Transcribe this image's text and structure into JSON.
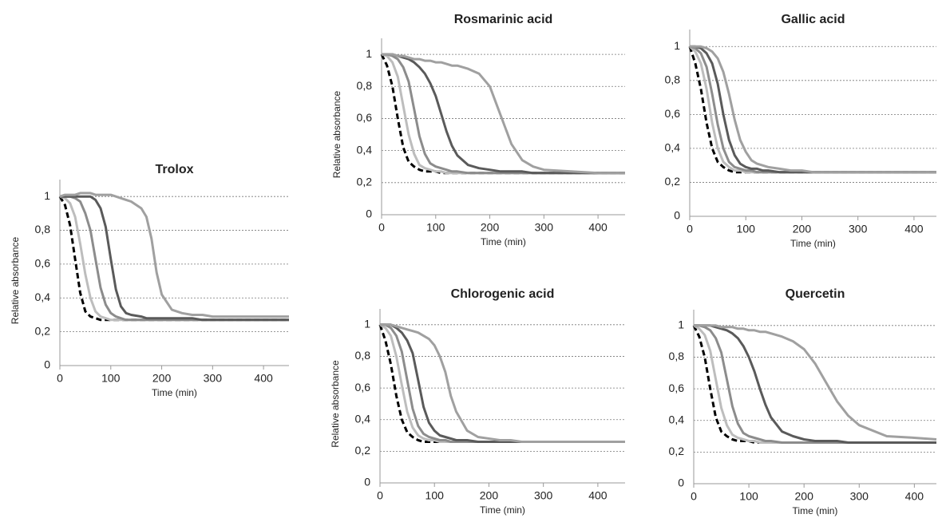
{
  "chart_data": [
    {
      "type": "line",
      "title": "Trolox",
      "xlabel": "Time (min)",
      "ylabel": "Relative absorbance",
      "x": [
        0,
        10,
        20,
        30,
        40,
        50,
        60,
        70,
        80,
        90,
        100,
        110,
        120,
        130,
        140,
        160,
        170,
        180,
        190,
        200,
        220,
        240,
        260,
        280,
        300,
        350,
        400,
        450
      ],
      "xlim": [
        0,
        450
      ],
      "xticks": [
        0,
        100,
        200,
        300,
        400
      ],
      "ylim": [
        0,
        1.1
      ],
      "yticks": [
        0,
        {
          "value": 0.2,
          "label": "0,2"
        },
        {
          "value": 0.4,
          "label": "0,4"
        },
        {
          "value": 0.6,
          "label": "0,6"
        },
        {
          "value": 0.8,
          "label": "0,8"
        },
        1
      ],
      "grid": true,
      "series": [
        {
          "color": "#000000",
          "dash": true,
          "values": [
            1,
            0.95,
            0.83,
            0.63,
            0.43,
            0.32,
            0.29,
            0.28,
            0.27,
            0.27,
            0.27,
            0.27,
            0.27,
            0.27,
            0.27,
            0.27,
            0.27,
            0.27,
            0.27,
            0.27,
            0.27,
            0.27,
            0.27,
            0.27,
            0.27,
            0.27,
            0.27,
            0.27
          ]
        },
        {
          "color": "#bdbdbd",
          "values": [
            1,
            0.99,
            0.96,
            0.88,
            0.72,
            0.54,
            0.4,
            0.32,
            0.29,
            0.28,
            0.27,
            0.27,
            0.27,
            0.27,
            0.27,
            0.27,
            0.27,
            0.27,
            0.27,
            0.27,
            0.27,
            0.27,
            0.27,
            0.27,
            0.27,
            0.27,
            0.27,
            0.27
          ]
        },
        {
          "color": "#8c8c8c",
          "values": [
            1,
            1,
            1,
            0.99,
            0.97,
            0.9,
            0.8,
            0.63,
            0.46,
            0.36,
            0.31,
            0.29,
            0.28,
            0.27,
            0.27,
            0.27,
            0.27,
            0.27,
            0.27,
            0.27,
            0.27,
            0.27,
            0.27,
            0.27,
            0.27,
            0.27,
            0.27,
            0.27
          ]
        },
        {
          "color": "#5a5a5a",
          "values": [
            1,
            1,
            1,
            1,
            1,
            1,
            1,
            0.98,
            0.93,
            0.82,
            0.63,
            0.45,
            0.35,
            0.31,
            0.3,
            0.29,
            0.28,
            0.28,
            0.28,
            0.28,
            0.28,
            0.28,
            0.28,
            0.27,
            0.27,
            0.27,
            0.27,
            0.27
          ]
        },
        {
          "color": "#a0a0a0",
          "values": [
            1,
            1.01,
            1.01,
            1.01,
            1.02,
            1.02,
            1.02,
            1.01,
            1.01,
            1.01,
            1.01,
            1,
            0.99,
            0.98,
            0.97,
            0.93,
            0.88,
            0.75,
            0.55,
            0.42,
            0.33,
            0.31,
            0.3,
            0.3,
            0.29,
            0.29,
            0.29,
            0.29
          ]
        }
      ]
    },
    {
      "type": "line",
      "title": "Rosmarinic acid",
      "xlabel": "Time (min)",
      "ylabel": "Relative absorbance",
      "x": [
        0,
        10,
        20,
        30,
        40,
        50,
        60,
        70,
        80,
        90,
        100,
        110,
        120,
        130,
        140,
        160,
        180,
        200,
        220,
        240,
        260,
        280,
        300,
        350,
        400,
        450
      ],
      "xlim": [
        0,
        450
      ],
      "xticks": [
        0,
        100,
        200,
        300,
        400
      ],
      "ylim": [
        0,
        1.1
      ],
      "yticks": [
        0,
        {
          "value": 0.2,
          "label": "0,2"
        },
        {
          "value": 0.4,
          "label": "0,4"
        },
        {
          "value": 0.6,
          "label": "0,6"
        },
        {
          "value": 0.8,
          "label": "0,8"
        },
        1
      ],
      "grid": true,
      "series": [
        {
          "color": "#000000",
          "dash": true,
          "values": [
            1,
            0.93,
            0.8,
            0.6,
            0.42,
            0.33,
            0.3,
            0.28,
            0.27,
            0.27,
            0.27,
            0.26,
            0.26,
            0.26,
            0.26,
            0.26,
            0.26,
            0.26,
            0.26,
            0.26,
            0.26,
            0.26,
            0.26,
            0.26,
            0.26,
            0.26
          ]
        },
        {
          "color": "#bdbdbd",
          "values": [
            1,
            0.99,
            0.95,
            0.86,
            0.68,
            0.5,
            0.38,
            0.31,
            0.29,
            0.28,
            0.27,
            0.27,
            0.26,
            0.26,
            0.26,
            0.26,
            0.26,
            0.26,
            0.26,
            0.26,
            0.26,
            0.26,
            0.26,
            0.26,
            0.26,
            0.26
          ]
        },
        {
          "color": "#8c8c8c",
          "values": [
            1,
            1,
            0.99,
            0.97,
            0.92,
            0.83,
            0.66,
            0.49,
            0.38,
            0.32,
            0.3,
            0.29,
            0.28,
            0.27,
            0.27,
            0.26,
            0.26,
            0.26,
            0.26,
            0.26,
            0.26,
            0.26,
            0.26,
            0.26,
            0.26,
            0.26
          ]
        },
        {
          "color": "#5a5a5a",
          "values": [
            1,
            1,
            1,
            0.99,
            0.98,
            0.97,
            0.95,
            0.92,
            0.88,
            0.82,
            0.74,
            0.63,
            0.52,
            0.43,
            0.37,
            0.31,
            0.29,
            0.28,
            0.27,
            0.27,
            0.27,
            0.26,
            0.26,
            0.26,
            0.26,
            0.26
          ]
        },
        {
          "color": "#a0a0a0",
          "values": [
            1,
            1,
            1,
            0.99,
            0.99,
            0.98,
            0.97,
            0.97,
            0.96,
            0.96,
            0.95,
            0.95,
            0.94,
            0.93,
            0.93,
            0.91,
            0.88,
            0.8,
            0.62,
            0.44,
            0.34,
            0.3,
            0.28,
            0.27,
            0.26,
            0.26
          ]
        }
      ]
    },
    {
      "type": "line",
      "title": "Gallic acid",
      "xlabel": "Time (min)",
      "x": [
        0,
        10,
        20,
        30,
        40,
        50,
        60,
        70,
        80,
        90,
        100,
        110,
        120,
        130,
        140,
        160,
        180,
        200,
        220,
        240,
        260,
        280,
        300,
        350,
        400,
        440
      ],
      "xlim": [
        0,
        440
      ],
      "xticks": [
        0,
        100,
        200,
        300,
        400
      ],
      "ylim": [
        0,
        1.1
      ],
      "yticks": [
        0,
        {
          "value": 0.2,
          "label": "0,2"
        },
        {
          "value": 0.4,
          "label": "0,4"
        },
        {
          "value": 0.6,
          "label": "0,6"
        },
        {
          "value": 0.8,
          "label": "0,8"
        },
        1
      ],
      "grid": true,
      "series": [
        {
          "color": "#000000",
          "dash": true,
          "values": [
            1,
            0.9,
            0.75,
            0.55,
            0.4,
            0.32,
            0.29,
            0.27,
            0.26,
            0.26,
            0.26,
            0.26,
            0.26,
            0.26,
            0.26,
            0.26,
            0.26,
            0.26,
            0.26,
            0.26,
            0.26,
            0.26,
            0.26,
            0.26,
            0.26,
            0.26
          ]
        },
        {
          "color": "#bdbdbd",
          "values": [
            1,
            0.97,
            0.9,
            0.75,
            0.55,
            0.4,
            0.32,
            0.29,
            0.27,
            0.27,
            0.26,
            0.26,
            0.26,
            0.26,
            0.26,
            0.26,
            0.26,
            0.26,
            0.26,
            0.26,
            0.26,
            0.26,
            0.26,
            0.26,
            0.26,
            0.26
          ]
        },
        {
          "color": "#8c8c8c",
          "values": [
            1,
            0.99,
            0.96,
            0.88,
            0.72,
            0.54,
            0.4,
            0.32,
            0.29,
            0.28,
            0.27,
            0.27,
            0.26,
            0.26,
            0.26,
            0.26,
            0.26,
            0.26,
            0.26,
            0.26,
            0.26,
            0.26,
            0.26,
            0.26,
            0.26,
            0.26
          ]
        },
        {
          "color": "#5a5a5a",
          "values": [
            1,
            1,
            0.99,
            0.96,
            0.9,
            0.78,
            0.6,
            0.45,
            0.36,
            0.31,
            0.29,
            0.28,
            0.28,
            0.27,
            0.27,
            0.26,
            0.26,
            0.26,
            0.26,
            0.26,
            0.26,
            0.26,
            0.26,
            0.26,
            0.26,
            0.26
          ]
        },
        {
          "color": "#a0a0a0",
          "values": [
            1,
            1,
            1,
            0.99,
            0.97,
            0.93,
            0.85,
            0.72,
            0.57,
            0.45,
            0.38,
            0.33,
            0.31,
            0.3,
            0.29,
            0.28,
            0.27,
            0.27,
            0.26,
            0.26,
            0.26,
            0.26,
            0.26,
            0.26,
            0.26,
            0.26
          ]
        }
      ]
    },
    {
      "type": "line",
      "title": "Chlorogenic acid",
      "xlabel": "Time (min)",
      "ylabel": "Relative absorbance",
      "x": [
        0,
        10,
        20,
        30,
        40,
        50,
        60,
        70,
        80,
        90,
        100,
        110,
        120,
        130,
        140,
        160,
        180,
        200,
        220,
        240,
        260,
        280,
        300,
        350,
        400,
        450
      ],
      "xlim": [
        0,
        450
      ],
      "xticks": [
        0,
        100,
        200,
        300,
        400
      ],
      "ylim": [
        0,
        1.1
      ],
      "yticks": [
        0,
        {
          "value": 0.2,
          "label": "0,2"
        },
        {
          "value": 0.4,
          "label": "0,4"
        },
        {
          "value": 0.6,
          "label": "0,6"
        },
        {
          "value": 0.8,
          "label": "0,8"
        },
        1
      ],
      "grid": true,
      "series": [
        {
          "color": "#000000",
          "dash": true,
          "values": [
            1,
            0.9,
            0.75,
            0.55,
            0.4,
            0.32,
            0.29,
            0.27,
            0.26,
            0.26,
            0.26,
            0.26,
            0.26,
            0.26,
            0.26,
            0.26,
            0.26,
            0.26,
            0.26,
            0.26,
            0.26,
            0.26,
            0.26,
            0.26,
            0.26,
            0.26
          ]
        },
        {
          "color": "#bdbdbd",
          "values": [
            1,
            0.98,
            0.93,
            0.8,
            0.62,
            0.45,
            0.35,
            0.3,
            0.28,
            0.27,
            0.27,
            0.26,
            0.26,
            0.26,
            0.26,
            0.26,
            0.26,
            0.26,
            0.26,
            0.26,
            0.26,
            0.26,
            0.26,
            0.26,
            0.26,
            0.26
          ]
        },
        {
          "color": "#8c8c8c",
          "values": [
            1,
            1,
            0.98,
            0.93,
            0.83,
            0.65,
            0.47,
            0.36,
            0.31,
            0.29,
            0.28,
            0.27,
            0.27,
            0.26,
            0.26,
            0.26,
            0.26,
            0.26,
            0.26,
            0.26,
            0.26,
            0.26,
            0.26,
            0.26,
            0.26,
            0.26
          ]
        },
        {
          "color": "#5a5a5a",
          "values": [
            1,
            1,
            1,
            0.98,
            0.95,
            0.9,
            0.82,
            0.65,
            0.48,
            0.38,
            0.33,
            0.3,
            0.29,
            0.28,
            0.27,
            0.27,
            0.26,
            0.26,
            0.26,
            0.26,
            0.26,
            0.26,
            0.26,
            0.26,
            0.26,
            0.26
          ]
        },
        {
          "color": "#a0a0a0",
          "values": [
            1,
            1,
            1,
            0.99,
            0.98,
            0.97,
            0.96,
            0.95,
            0.93,
            0.91,
            0.87,
            0.8,
            0.7,
            0.55,
            0.45,
            0.33,
            0.29,
            0.28,
            0.27,
            0.27,
            0.26,
            0.26,
            0.26,
            0.26,
            0.26,
            0.26
          ]
        }
      ]
    },
    {
      "type": "line",
      "title": "Quercetin",
      "xlabel": "Time (min)",
      "x": [
        0,
        10,
        20,
        30,
        40,
        50,
        60,
        70,
        80,
        90,
        100,
        110,
        120,
        130,
        140,
        160,
        180,
        200,
        220,
        240,
        260,
        280,
        300,
        350,
        400,
        440
      ],
      "xlim": [
        0,
        440
      ],
      "xticks": [
        0,
        100,
        200,
        300,
        400
      ],
      "ylim": [
        0,
        1.1
      ],
      "yticks": [
        0,
        {
          "value": 0.2,
          "label": "0,2"
        },
        {
          "value": 0.4,
          "label": "0,4"
        },
        {
          "value": 0.6,
          "label": "0,6"
        },
        {
          "value": 0.8,
          "label": "0,8"
        },
        1
      ],
      "grid": true,
      "series": [
        {
          "color": "#000000",
          "dash": true,
          "values": [
            1,
            0.93,
            0.8,
            0.6,
            0.42,
            0.33,
            0.3,
            0.28,
            0.27,
            0.27,
            0.27,
            0.26,
            0.26,
            0.26,
            0.26,
            0.26,
            0.26,
            0.26,
            0.26,
            0.26,
            0.26,
            0.26,
            0.26,
            0.26,
            0.26,
            0.26
          ]
        },
        {
          "color": "#bdbdbd",
          "values": [
            1,
            0.98,
            0.94,
            0.84,
            0.66,
            0.48,
            0.37,
            0.31,
            0.29,
            0.28,
            0.27,
            0.27,
            0.26,
            0.26,
            0.26,
            0.26,
            0.26,
            0.26,
            0.26,
            0.26,
            0.26,
            0.26,
            0.26,
            0.26,
            0.26,
            0.26
          ]
        },
        {
          "color": "#8c8c8c",
          "values": [
            1,
            1,
            0.99,
            0.97,
            0.92,
            0.83,
            0.66,
            0.49,
            0.38,
            0.32,
            0.3,
            0.29,
            0.28,
            0.27,
            0.27,
            0.26,
            0.26,
            0.26,
            0.26,
            0.26,
            0.26,
            0.26,
            0.26,
            0.26,
            0.26,
            0.26
          ]
        },
        {
          "color": "#5a5a5a",
          "values": [
            1,
            1,
            1,
            1,
            0.99,
            0.98,
            0.97,
            0.95,
            0.92,
            0.87,
            0.8,
            0.71,
            0.6,
            0.5,
            0.42,
            0.33,
            0.3,
            0.28,
            0.27,
            0.27,
            0.27,
            0.26,
            0.26,
            0.26,
            0.26,
            0.26
          ]
        },
        {
          "color": "#a0a0a0",
          "values": [
            1,
            1,
            1,
            1,
            1,
            0.99,
            0.99,
            0.99,
            0.98,
            0.98,
            0.97,
            0.97,
            0.96,
            0.96,
            0.95,
            0.93,
            0.9,
            0.85,
            0.76,
            0.64,
            0.52,
            0.43,
            0.37,
            0.3,
            0.29,
            0.28
          ]
        }
      ]
    }
  ]
}
